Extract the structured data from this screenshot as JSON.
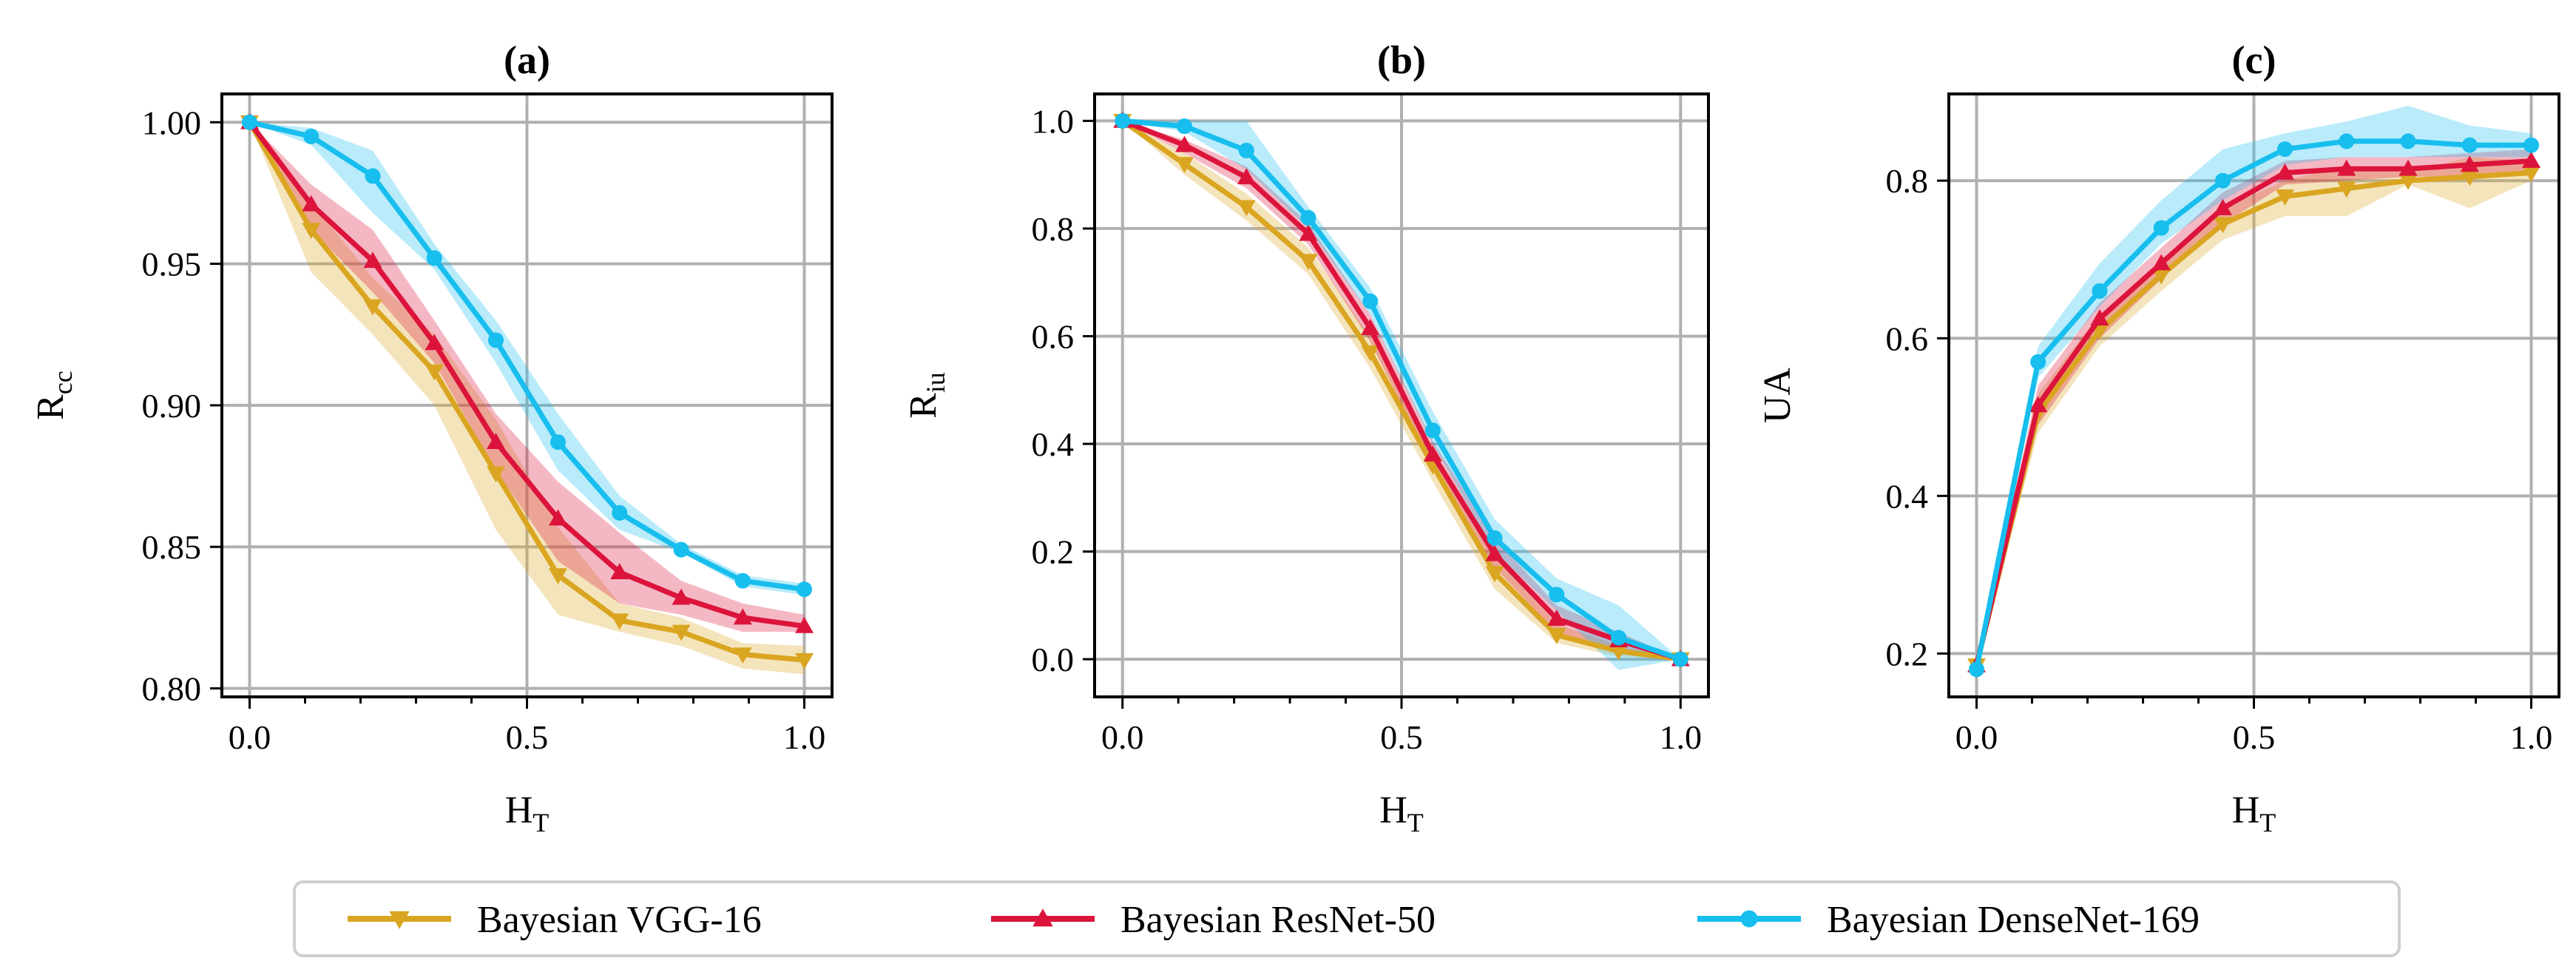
{
  "chart_data": [
    {
      "type": "line",
      "title": "(a)",
      "xlabel": "H",
      "xlabel_sub": "T",
      "ylabel": "R",
      "ylabel_sub": "cc",
      "xlim": [
        -0.05,
        1.05
      ],
      "ylim": [
        0.797,
        1.01
      ],
      "xticks": [
        0.0,
        0.5,
        1.0
      ],
      "xtick_labels": [
        "0.0",
        "0.5",
        "1.0"
      ],
      "yticks": [
        0.8,
        0.85,
        0.9,
        0.95,
        1.0
      ],
      "ytick_labels": [
        "0.80",
        "0.85",
        "0.90",
        "0.95",
        "1.00"
      ],
      "grid": true,
      "x": [
        0.0,
        0.111,
        0.222,
        0.333,
        0.444,
        0.556,
        0.667,
        0.778,
        0.889,
        1.0
      ],
      "series": [
        {
          "name": "Bayesian VGG-16",
          "marker": "triangle-down",
          "values": [
            1.0,
            0.962,
            0.935,
            0.912,
            0.876,
            0.84,
            0.824,
            0.82,
            0.812,
            0.81
          ],
          "lower": [
            1.0,
            0.947,
            0.925,
            0.9,
            0.856,
            0.826,
            0.82,
            0.815,
            0.807,
            0.805
          ],
          "upper": [
            1.0,
            0.972,
            0.945,
            0.925,
            0.895,
            0.857,
            0.83,
            0.825,
            0.816,
            0.815
          ]
        },
        {
          "name": "Bayesian ResNet-50",
          "marker": "triangle-up",
          "values": [
            1.0,
            0.971,
            0.951,
            0.922,
            0.887,
            0.86,
            0.841,
            0.832,
            0.825,
            0.822
          ],
          "lower": [
            1.0,
            0.962,
            0.94,
            0.915,
            0.877,
            0.845,
            0.83,
            0.826,
            0.82,
            0.82
          ],
          "upper": [
            1.0,
            0.978,
            0.962,
            0.93,
            0.897,
            0.873,
            0.855,
            0.838,
            0.83,
            0.826
          ]
        },
        {
          "name": "Bayesian DenseNet-169",
          "marker": "circle",
          "values": [
            1.0,
            0.995,
            0.981,
            0.952,
            0.923,
            0.887,
            0.862,
            0.849,
            0.838,
            0.835
          ],
          "lower": [
            1.0,
            0.992,
            0.968,
            0.948,
            0.915,
            0.877,
            0.856,
            0.848,
            0.836,
            0.833
          ],
          "upper": [
            1.0,
            0.998,
            0.99,
            0.957,
            0.93,
            0.897,
            0.868,
            0.851,
            0.84,
            0.837
          ]
        }
      ]
    },
    {
      "type": "line",
      "title": "(b)",
      "xlabel": "H",
      "xlabel_sub": "T",
      "ylabel": "R",
      "ylabel_sub": "iu",
      "xlim": [
        -0.05,
        1.05
      ],
      "ylim": [
        -0.07,
        1.05
      ],
      "xticks": [
        0.0,
        0.5,
        1.0
      ],
      "xtick_labels": [
        "0.0",
        "0.5",
        "1.0"
      ],
      "yticks": [
        0.0,
        0.2,
        0.4,
        0.6,
        0.8,
        1.0
      ],
      "ytick_labels": [
        "0.0",
        "0.2",
        "0.4",
        "0.6",
        "0.8",
        "1.0"
      ],
      "grid": true,
      "x": [
        0.0,
        0.111,
        0.222,
        0.333,
        0.444,
        0.556,
        0.667,
        0.778,
        0.889,
        1.0
      ],
      "series": [
        {
          "name": "Bayesian VGG-16",
          "marker": "triangle-down",
          "values": [
            1.0,
            0.92,
            0.84,
            0.74,
            0.57,
            0.36,
            0.16,
            0.045,
            0.015,
            0.0
          ],
          "lower": [
            1.0,
            0.9,
            0.815,
            0.715,
            0.54,
            0.33,
            0.13,
            0.03,
            0.005,
            0.0
          ],
          "upper": [
            1.0,
            0.94,
            0.865,
            0.765,
            0.6,
            0.39,
            0.19,
            0.065,
            0.025,
            0.0
          ]
        },
        {
          "name": "Bayesian ResNet-50",
          "marker": "triangle-up",
          "values": [
            1.0,
            0.955,
            0.895,
            0.79,
            0.615,
            0.38,
            0.195,
            0.075,
            0.035,
            0.0
          ],
          "lower": [
            1.0,
            0.94,
            0.875,
            0.77,
            0.59,
            0.355,
            0.17,
            0.05,
            0.02,
            0.0
          ],
          "upper": [
            1.0,
            0.965,
            0.915,
            0.81,
            0.64,
            0.405,
            0.225,
            0.1,
            0.05,
            0.0
          ]
        },
        {
          "name": "Bayesian DenseNet-169",
          "marker": "circle",
          "values": [
            1.0,
            0.99,
            0.945,
            0.82,
            0.665,
            0.425,
            0.225,
            0.12,
            0.04,
            0.0
          ],
          "lower": [
            1.0,
            0.98,
            0.91,
            0.8,
            0.64,
            0.4,
            0.2,
            0.09,
            -0.02,
            0.0
          ],
          "upper": [
            1.0,
            1.0,
            1.0,
            0.84,
            0.69,
            0.46,
            0.26,
            0.15,
            0.1,
            0.0
          ]
        }
      ]
    },
    {
      "type": "line",
      "title": "(c)",
      "xlabel": "H",
      "xlabel_sub": "T",
      "ylabel": "UA",
      "ylabel_sub": "",
      "xlim": [
        -0.05,
        1.05
      ],
      "ylim": [
        0.145,
        0.91
      ],
      "xticks": [
        0.0,
        0.5,
        1.0
      ],
      "xtick_labels": [
        "0.0",
        "0.5",
        "1.0"
      ],
      "yticks": [
        0.2,
        0.4,
        0.6,
        0.8
      ],
      "ytick_labels": [
        "0.2",
        "0.4",
        "0.6",
        "0.8"
      ],
      "grid": true,
      "x": [
        0.0,
        0.111,
        0.222,
        0.333,
        0.444,
        0.556,
        0.667,
        0.778,
        0.889,
        1.0
      ],
      "series": [
        {
          "name": "Bayesian VGG-16",
          "marker": "triangle-down",
          "values": [
            0.185,
            0.505,
            0.61,
            0.68,
            0.745,
            0.78,
            0.79,
            0.8,
            0.805,
            0.81
          ],
          "lower": [
            0.185,
            0.48,
            0.59,
            0.66,
            0.725,
            0.755,
            0.755,
            0.795,
            0.765,
            0.8
          ],
          "upper": [
            0.185,
            0.53,
            0.63,
            0.7,
            0.765,
            0.8,
            0.82,
            0.81,
            0.83,
            0.825
          ]
        },
        {
          "name": "Bayesian ResNet-50",
          "marker": "triangle-up",
          "values": [
            0.185,
            0.515,
            0.625,
            0.695,
            0.765,
            0.81,
            0.815,
            0.815,
            0.82,
            0.825
          ],
          "lower": [
            0.185,
            0.49,
            0.6,
            0.675,
            0.745,
            0.795,
            0.8,
            0.805,
            0.805,
            0.81
          ],
          "upper": [
            0.185,
            0.54,
            0.645,
            0.715,
            0.785,
            0.825,
            0.83,
            0.83,
            0.835,
            0.84
          ]
        },
        {
          "name": "Bayesian DenseNet-169",
          "marker": "circle",
          "values": [
            0.18,
            0.57,
            0.66,
            0.74,
            0.8,
            0.84,
            0.85,
            0.85,
            0.845,
            0.845
          ],
          "lower": [
            0.18,
            0.55,
            0.64,
            0.72,
            0.775,
            0.82,
            0.83,
            0.83,
            0.83,
            0.83
          ],
          "upper": [
            0.18,
            0.59,
            0.695,
            0.775,
            0.84,
            0.86,
            0.875,
            0.895,
            0.87,
            0.86
          ]
        }
      ]
    }
  ],
  "legend": {
    "placement": "bottom-center",
    "entries": [
      {
        "name": "Bayesian VGG-16",
        "color": "#DAA520",
        "marker": "triangle-down"
      },
      {
        "name": "Bayesian ResNet-50",
        "color": "#DC143C",
        "marker": "triangle-up"
      },
      {
        "name": "Bayesian DenseNet-169",
        "color": "#17BEEE",
        "marker": "circle"
      }
    ]
  },
  "colors": {
    "Bayesian VGG-16": "#DAA520",
    "Bayesian ResNet-50": "#DC143C",
    "Bayesian DenseNet-169": "#17BEEE",
    "grid": "#B0B0B0",
    "axes": "#000000"
  }
}
